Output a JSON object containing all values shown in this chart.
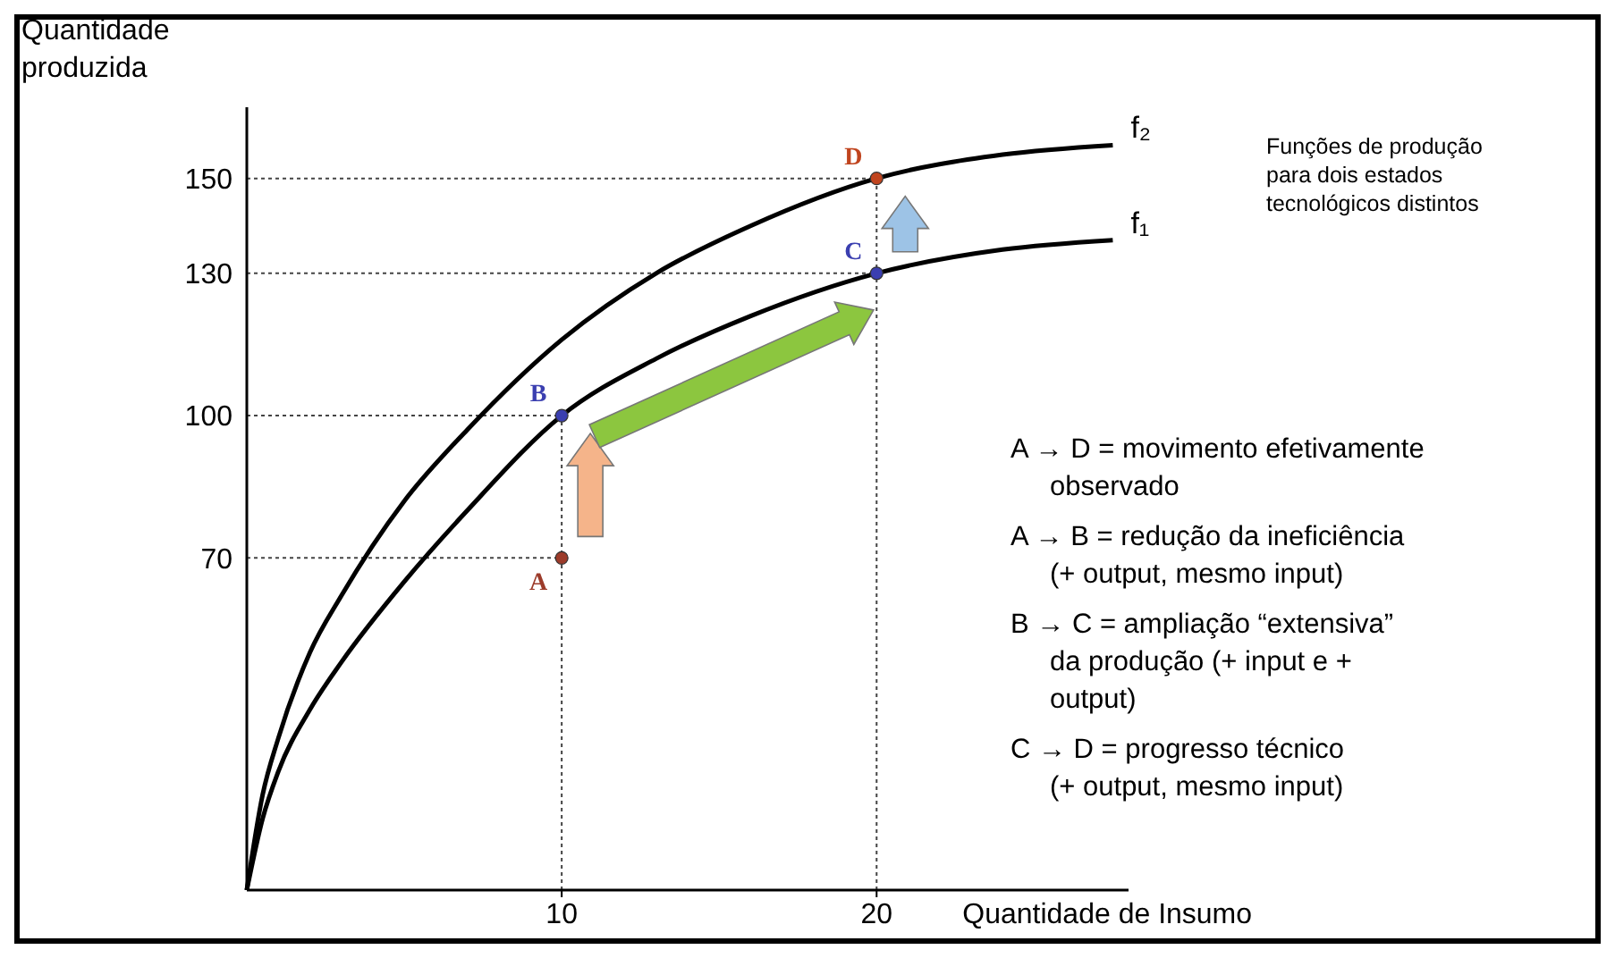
{
  "chart_data": {
    "type": "line",
    "ylabel": "Quantidade produzida",
    "xlabel": "Quantidade de Insumo",
    "xlim": [
      0,
      28
    ],
    "ylim": [
      0,
      165
    ],
    "xticks": [
      10,
      20
    ],
    "yticks": [
      70,
      100,
      130,
      150
    ],
    "grid": false,
    "legend": false,
    "line_style": "solid",
    "series": [
      {
        "name": "f₁",
        "color": "#000000",
        "x": [
          0,
          0.5,
          1,
          2,
          3,
          5,
          7,
          10,
          13,
          16,
          20,
          24,
          27.5
        ],
        "values": [
          0,
          15,
          25,
          38,
          48,
          65,
          80,
          100,
          112,
          121,
          130,
          135,
          137
        ]
      },
      {
        "name": "f₂",
        "color": "#000000",
        "x": [
          0,
          0.5,
          1,
          2,
          3,
          5,
          7,
          10,
          13,
          16,
          20,
          24,
          27.5
        ],
        "values": [
          0,
          20,
          32,
          50,
          62,
          82,
          97,
          116,
          130,
          140,
          150,
          155,
          157
        ]
      },
      {
        "type": "scatter",
        "marker": "circle",
        "x": [
          10,
          10,
          20,
          20
        ],
        "values": [
          70,
          100,
          130,
          150
        ],
        "colors": [
          "#9c3b2a",
          "#3b3fb0",
          "#3b3fb0",
          "#c0441e"
        ],
        "value_labels": [
          "A",
          "B",
          "C",
          "D"
        ]
      }
    ],
    "ref_lines": [
      {
        "axis": "y",
        "value": 70,
        "line_style": "dotted",
        "color": "#444444"
      },
      {
        "axis": "y",
        "value": 100,
        "line_style": "dotted",
        "color": "#444444"
      },
      {
        "axis": "y",
        "value": 130,
        "line_style": "dotted",
        "color": "#444444"
      },
      {
        "axis": "y",
        "value": 150,
        "line_style": "dotted",
        "color": "#444444"
      },
      {
        "axis": "x",
        "value": 10,
        "line_style": "dotted",
        "color": "#444444"
      },
      {
        "axis": "x",
        "value": 20,
        "line_style": "dotted",
        "color": "#444444"
      }
    ],
    "annotations": [
      "Funções de produção para dois estados tecnológicos distintos",
      "A → D = movimento efetivamente observado",
      "A → B = redução da ineficiência (+ output, mesmo input)",
      "B → C = ampliação “extensiva” da produção (+ input e + output)",
      "C → D = progresso técnico (+ output, mesmo input)"
    ]
  }
}
